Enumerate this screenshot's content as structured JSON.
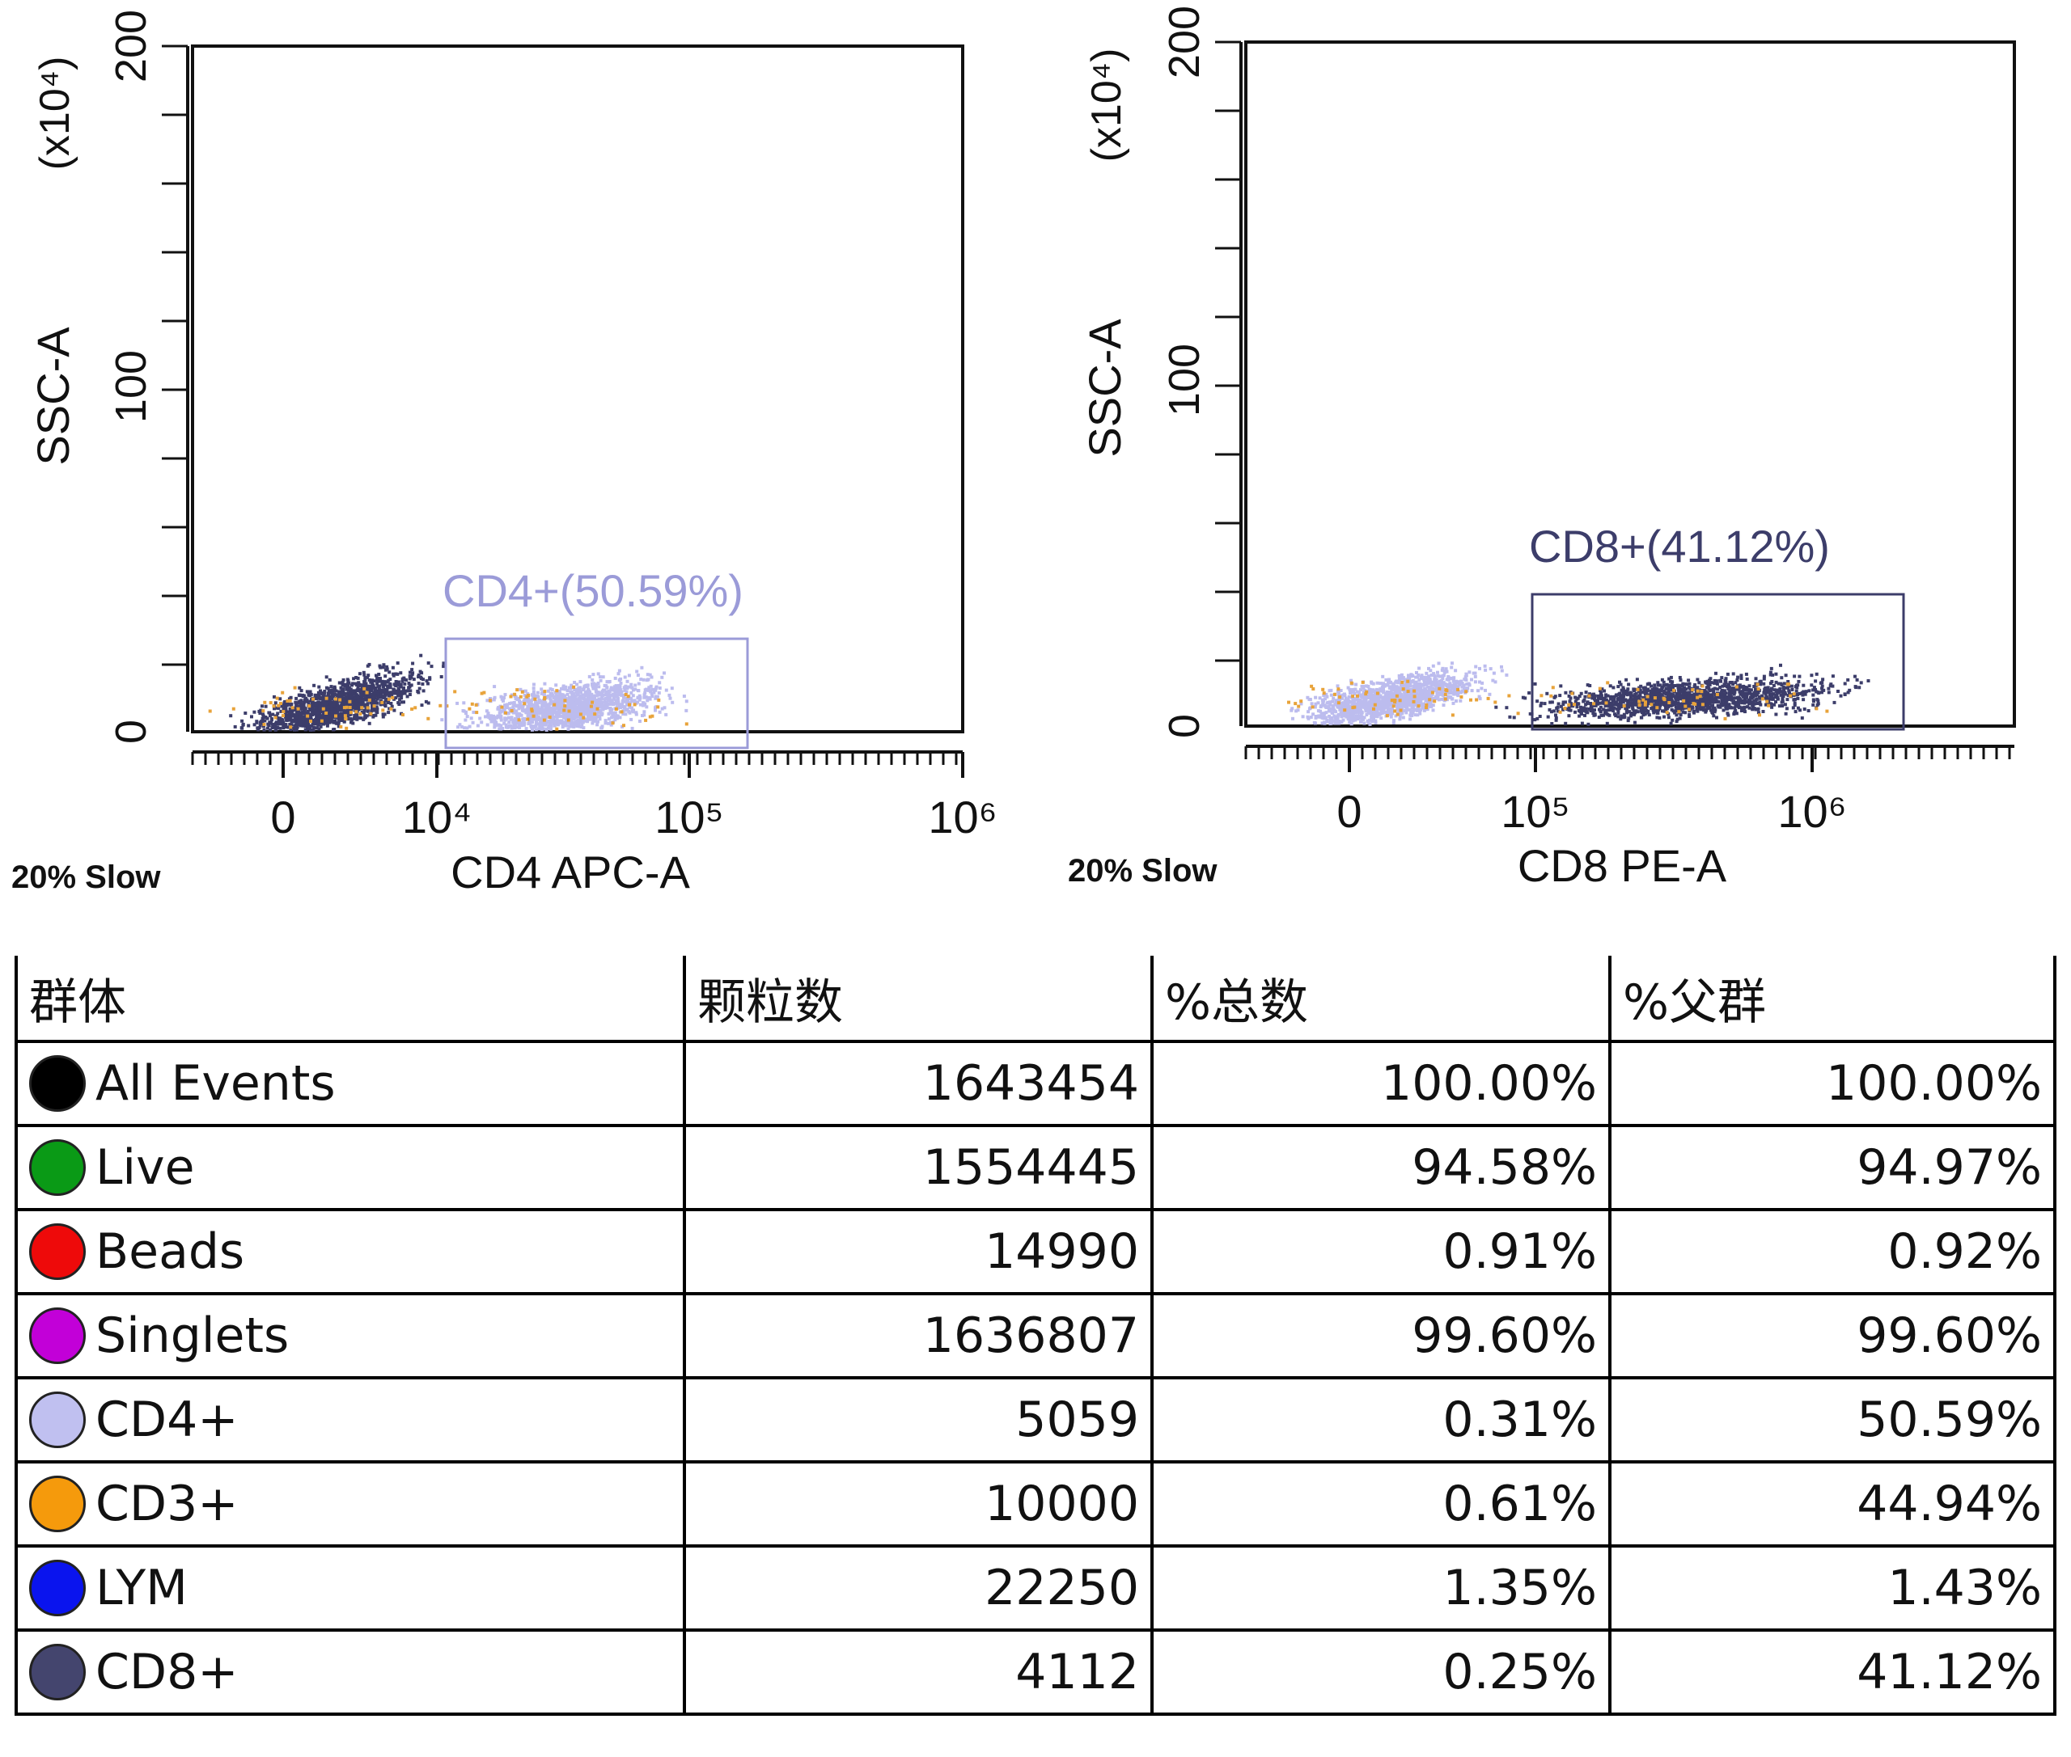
{
  "chart_data": [
    {
      "type": "scatter",
      "title": "",
      "xlabel": "CD4 APC-A",
      "ylabel": "SSC-A",
      "y_exponent_label": "(x10⁴)",
      "x_ticks": [
        "0",
        "10⁴",
        "10⁵",
        "10⁶"
      ],
      "y_ticks": [
        "0",
        "100",
        "200"
      ],
      "ylim": [
        0,
        200
      ],
      "scale_note": "20% Slow",
      "gate": {
        "label": "CD4+(50.59%)",
        "color": "#9b9bd8",
        "x_range": [
          "10⁴",
          "2×10⁵"
        ],
        "y_range": [
          0,
          28
        ]
      },
      "populations": [
        {
          "name": "CD8+",
          "color": "#3c3d6a",
          "x_center": "2×10³",
          "y_center": 8
        },
        {
          "name": "CD4+",
          "color": "#bcbcee",
          "x_center": "3×10⁴",
          "y_center": 8
        }
      ]
    },
    {
      "type": "scatter",
      "title": "",
      "xlabel": "CD8 PE-A",
      "ylabel": "SSC-A",
      "y_exponent_label": "(x10⁴)",
      "x_ticks": [
        "0",
        "10⁵",
        "10⁶"
      ],
      "y_ticks": [
        "0",
        "100",
        "200"
      ],
      "ylim": [
        0,
        200
      ],
      "scale_note": "20% Slow",
      "gate": {
        "label": "CD8+(41.12%)",
        "color": "#3c3d6a",
        "x_range": [
          "10⁵",
          "2×10⁶"
        ],
        "y_range": [
          0,
          38
        ]
      },
      "populations": [
        {
          "name": "CD4+",
          "color": "#bcbcee",
          "x_center": "4×10⁴",
          "y_center": 8
        },
        {
          "name": "CD8+",
          "color": "#3c3d6a",
          "x_center": "4×10⁵",
          "y_center": 8
        }
      ]
    }
  ],
  "table": {
    "headers": [
      "群体",
      "颗粒数",
      "%总数",
      "%父群"
    ],
    "rows": [
      {
        "name": "All Events",
        "color": "#000000",
        "count": "1643454",
        "pct_total": "100.00%",
        "pct_parent": "100.00%"
      },
      {
        "name": "Live",
        "color": "#0a9a16",
        "count": "1554445",
        "pct_total": "94.58%",
        "pct_parent": "94.97%"
      },
      {
        "name": "Beads",
        "color": "#ee0a0a",
        "count": "14990",
        "pct_total": "0.91%",
        "pct_parent": "0.92%"
      },
      {
        "name": "Singlets",
        "color": "#c200d8",
        "count": "1636807",
        "pct_total": "99.60%",
        "pct_parent": "99.60%"
      },
      {
        "name": "CD4+",
        "color": "#c0c0f0",
        "count": "5059",
        "pct_total": "0.31%",
        "pct_parent": "50.59%"
      },
      {
        "name": "CD3+",
        "color": "#f59a0c",
        "count": "10000",
        "pct_total": "0.61%",
        "pct_parent": "44.94%"
      },
      {
        "name": "LYM",
        "color": "#0a14ee",
        "count": "22250",
        "pct_total": "1.35%",
        "pct_parent": "1.43%"
      },
      {
        "name": "CD8+",
        "color": "#44456e",
        "count": "4112",
        "pct_total": "0.25%",
        "pct_parent": "41.12%"
      }
    ]
  }
}
